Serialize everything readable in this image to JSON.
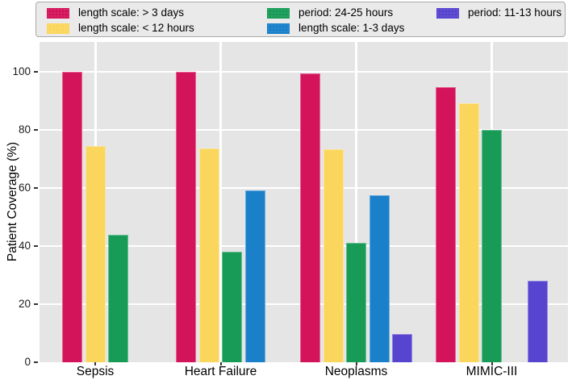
{
  "chart_data": {
    "type": "bar",
    "title": "",
    "xlabel": "",
    "ylabel": "Patient Coverage (%)",
    "categories": [
      "Sepsis",
      "Heart Failure",
      "Neoplasms",
      "MIMIC-III"
    ],
    "yticks": [
      0,
      20,
      40,
      60,
      80,
      100
    ],
    "ylim": [
      0,
      110
    ],
    "grid": true,
    "legend_position": "top",
    "panel_background": "#e5e5e5",
    "grid_color": "#ffffff",
    "series": [
      {
        "name": "length scale: > 3 days",
        "color": "#d4145a",
        "values": [
          100,
          100,
          99.5,
          94.8
        ]
      },
      {
        "name": "length scale: < 12 hours",
        "color": "#fbd65d",
        "values": [
          74.5,
          73.5,
          73.2,
          89.3
        ]
      },
      {
        "name": "period: 24-25 hours",
        "color": "#199b58",
        "values": [
          44,
          38,
          41.2,
          80
        ]
      },
      {
        "name": "length scale: 1-3 days",
        "color": "#1980c9",
        "values": [
          null,
          59.3,
          57.6,
          0
        ]
      },
      {
        "name": "period: 11-13 hours",
        "color": "#5845cf",
        "values": [
          null,
          null,
          9.8,
          28
        ]
      }
    ]
  }
}
